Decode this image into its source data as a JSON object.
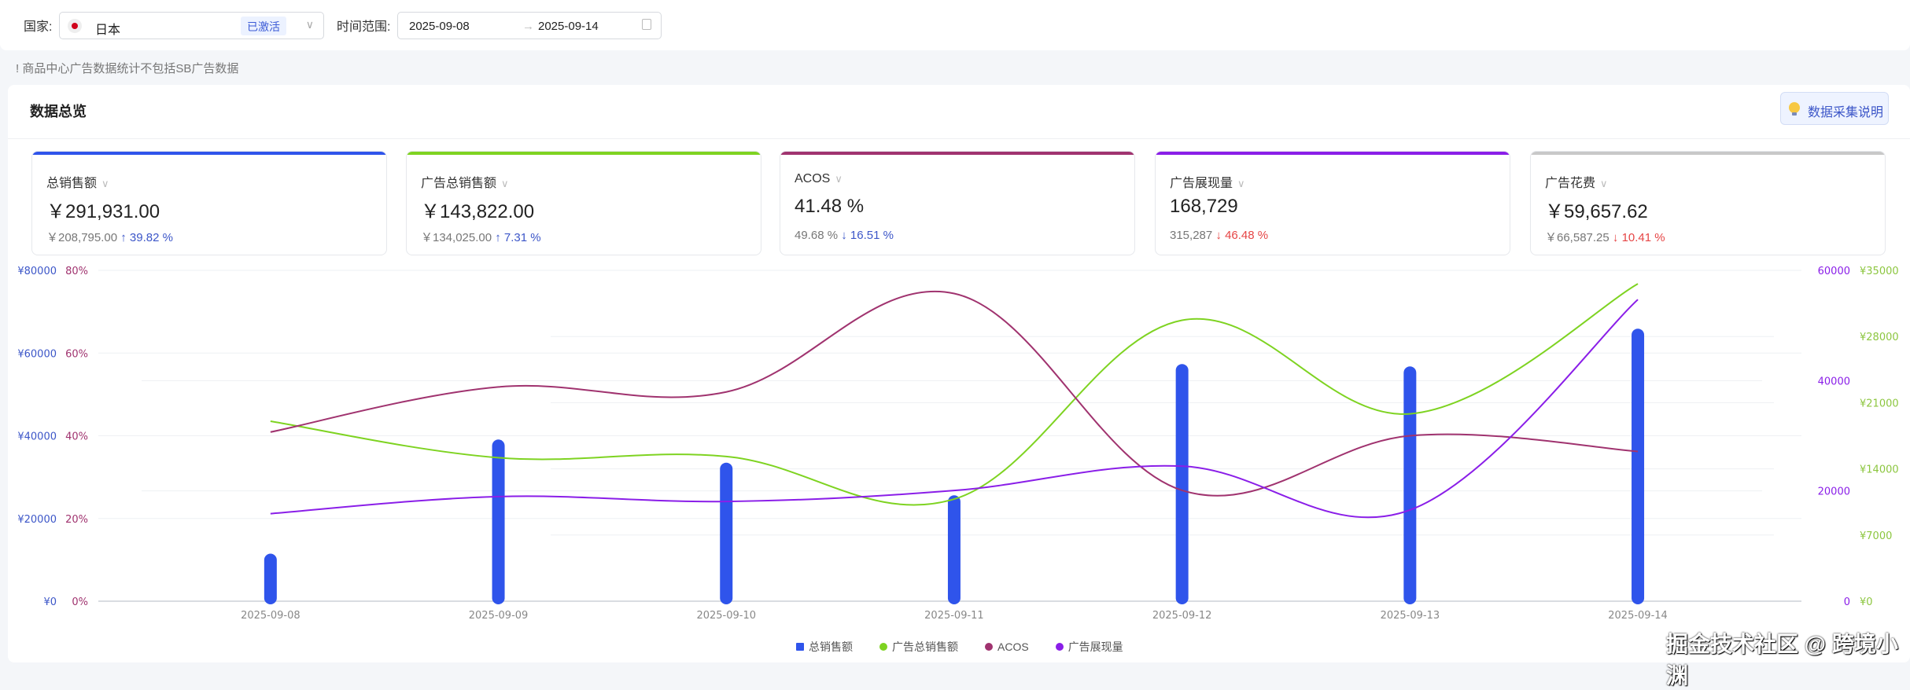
{
  "filter": {
    "country_label": "国家:",
    "country": "日本",
    "country_status": "已激活",
    "range_label": "时间范围:",
    "start": "2025-09-08",
    "end": "2025-09-14",
    "arrow": "→"
  },
  "notice": "! 商品中心广告数据统计不包括SB广告数据",
  "overview": {
    "title": "数据总览",
    "help_button": "数据采集说明"
  },
  "kpis": [
    {
      "label": "总销售额",
      "value": "￥291,931.00",
      "prev": "￥208,795.00",
      "change": "↑ 39.82 %",
      "color": "#2f54eb"
    },
    {
      "label": "广告总销售额",
      "value": "￥143,822.00",
      "prev": "￥134,025.00",
      "change": "↑ 7.31 %",
      "color": "#7ed321"
    },
    {
      "label": "ACOS",
      "value": "41.48 %",
      "prev": "49.68 %",
      "change": "↓ 16.51 %",
      "color": "#a0336f"
    },
    {
      "label": "广告展现量",
      "value": "168,729",
      "prev": "315,287",
      "change": "↓ 46.48 %",
      "color": "#8a1ee8"
    },
    {
      "label": "广告花费",
      "value": "￥59,657.62",
      "prev": "￥66,587.25",
      "change": "↓ 10.41 %",
      "color": "#c8c8c8"
    }
  ],
  "chart_data": {
    "type": "bar+line",
    "categories": [
      "2025-09-08",
      "2025-09-09",
      "2025-09-10",
      "2025-09-11",
      "2025-09-12",
      "2025-09-13",
      "2025-09-14"
    ],
    "series": [
      {
        "name": "总销售额",
        "type": "bar",
        "axis": "left1",
        "color": "#2f54eb",
        "values": [
          11500,
          39100,
          33500,
          25600,
          57350,
          56760,
          65900
        ]
      },
      {
        "name": "广告总销售额",
        "type": "line",
        "axis": "right2",
        "color": "#7ed321",
        "values": [
          19040,
          15180,
          15310,
          10800,
          29720,
          19820,
          33580
        ]
      },
      {
        "name": "ACOS",
        "type": "line",
        "axis": "left2",
        "color": "#a0336f",
        "values": [
          40.9,
          51.8,
          50.6,
          74.4,
          26.8,
          40.0,
          36.2
        ]
      },
      {
        "name": "广告展现量",
        "type": "line",
        "axis": "right1",
        "color": "#8a1ee8",
        "values": [
          15880,
          18970,
          18090,
          20070,
          24490,
          16540,
          54700
        ]
      }
    ],
    "axes": {
      "left1": {
        "ylim": [
          0,
          80000
        ],
        "ticks": [
          "¥0",
          "¥20000",
          "¥40000",
          "¥60000",
          "¥80000"
        ],
        "color": "#3c56c8"
      },
      "left2": {
        "ylim": [
          0,
          80
        ],
        "ticks": [
          "0%",
          "20%",
          "40%",
          "60%",
          "80%"
        ],
        "color": "#a0336f"
      },
      "right1": {
        "ylim": [
          0,
          60000
        ],
        "ticks": [
          "0",
          "20000",
          "40000",
          "60000"
        ],
        "color": "#8a1ee8"
      },
      "right2": {
        "ylim": [
          0,
          35000
        ],
        "ticks": [
          "¥0",
          "¥7000",
          "¥14000",
          "¥21000",
          "¥28000",
          "¥35000"
        ],
        "color": "#8cc63f"
      }
    },
    "legend": "bottom"
  },
  "watermark": "掘金技术社区 @ 跨境小渊"
}
